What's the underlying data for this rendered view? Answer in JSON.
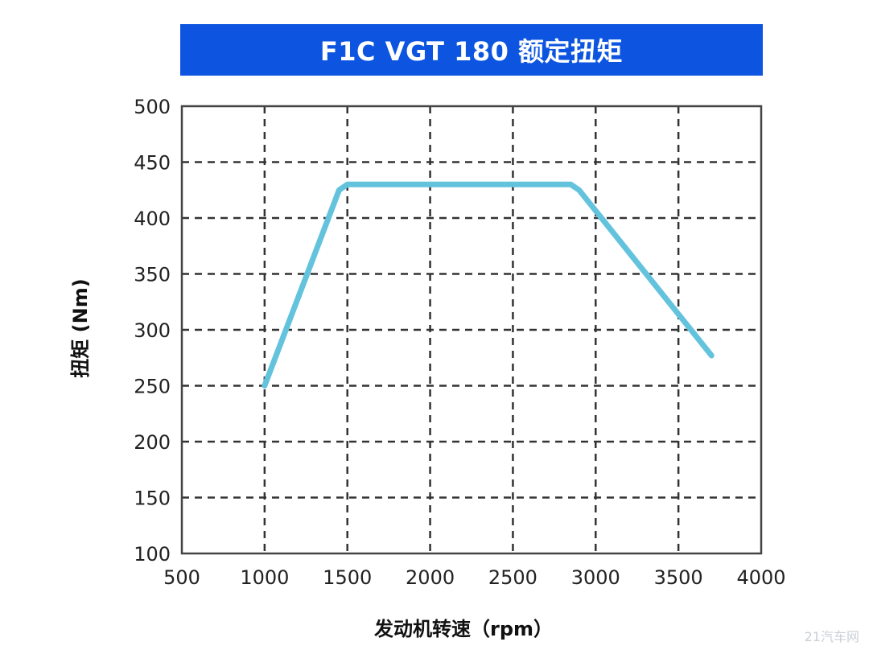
{
  "colors": {
    "title_bg": "#0d55e0",
    "title_text": "#ffffff",
    "line": "#63c3dd",
    "grid": "#333333",
    "frame": "#444444"
  },
  "watermark": "21汽车网",
  "chart_data": {
    "type": "line",
    "title": "F1C VGT 180 额定扭矩",
    "xlabel": "发动机转速（rpm）",
    "ylabel": "扭矩 (Nm)",
    "xlim": [
      500,
      4000
    ],
    "ylim": [
      100,
      500
    ],
    "xticks": [
      500,
      1000,
      1500,
      2000,
      2500,
      3000,
      3500,
      4000
    ],
    "yticks": [
      100,
      150,
      200,
      250,
      300,
      350,
      400,
      450,
      500
    ],
    "grid": true,
    "series": [
      {
        "x": [
          1000,
          1450,
          1500,
          2850,
          2900,
          3700
        ],
        "y": [
          250,
          425,
          430,
          430,
          425,
          277
        ]
      }
    ]
  }
}
